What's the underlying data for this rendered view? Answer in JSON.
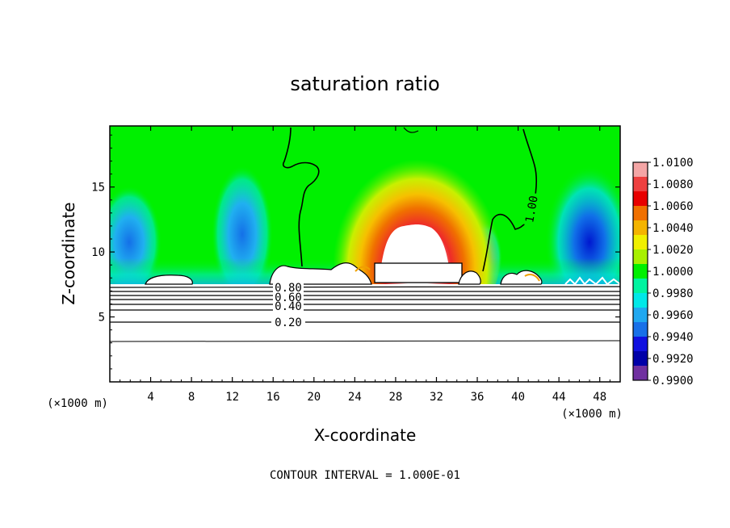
{
  "chart_data": {
    "type": "heatmap",
    "title": "saturation ratio",
    "xlabel": "X-coordinate",
    "ylabel": "Z-coordinate",
    "x_unit": "(×1000 m)",
    "xlim": [
      0,
      50
    ],
    "ylim": [
      0,
      19.7
    ],
    "x_ticks": [
      4,
      8,
      12,
      16,
      20,
      24,
      28,
      32,
      36,
      40,
      44,
      48
    ],
    "y_ticks": [
      5,
      10,
      15
    ],
    "colorbar": {
      "ticks": [
        "1.0100",
        "1.0080",
        "1.0060",
        "1.0040",
        "1.0020",
        "1.0000",
        "0.9980",
        "0.9960",
        "0.9940",
        "0.9920",
        "0.9900"
      ],
      "colors": [
        "#f4a6a6",
        "#ee4040",
        "#e80000",
        "#f07000",
        "#f4b400",
        "#f0f000",
        "#a8f000",
        "#00f000",
        "#00f4a0",
        "#00e8e8",
        "#20a8f0",
        "#1870e8",
        "#1010e0",
        "#0000a8",
        "#7030a0"
      ]
    },
    "contour_labels": [
      {
        "text": "1.00",
        "x": 33.5,
        "z": 14.0
      },
      {
        "text": "0.80",
        "x": 14.0,
        "z": 7.0
      },
      {
        "text": "0.60",
        "x": 14.0,
        "z": 6.4
      },
      {
        "text": "0.40",
        "x": 14.0,
        "z": 5.9
      },
      {
        "text": "0.20",
        "x": 14.0,
        "z": 4.8
      }
    ],
    "contour_interval_text": "CONTOUR INTERVAL = 1.000E-01"
  }
}
